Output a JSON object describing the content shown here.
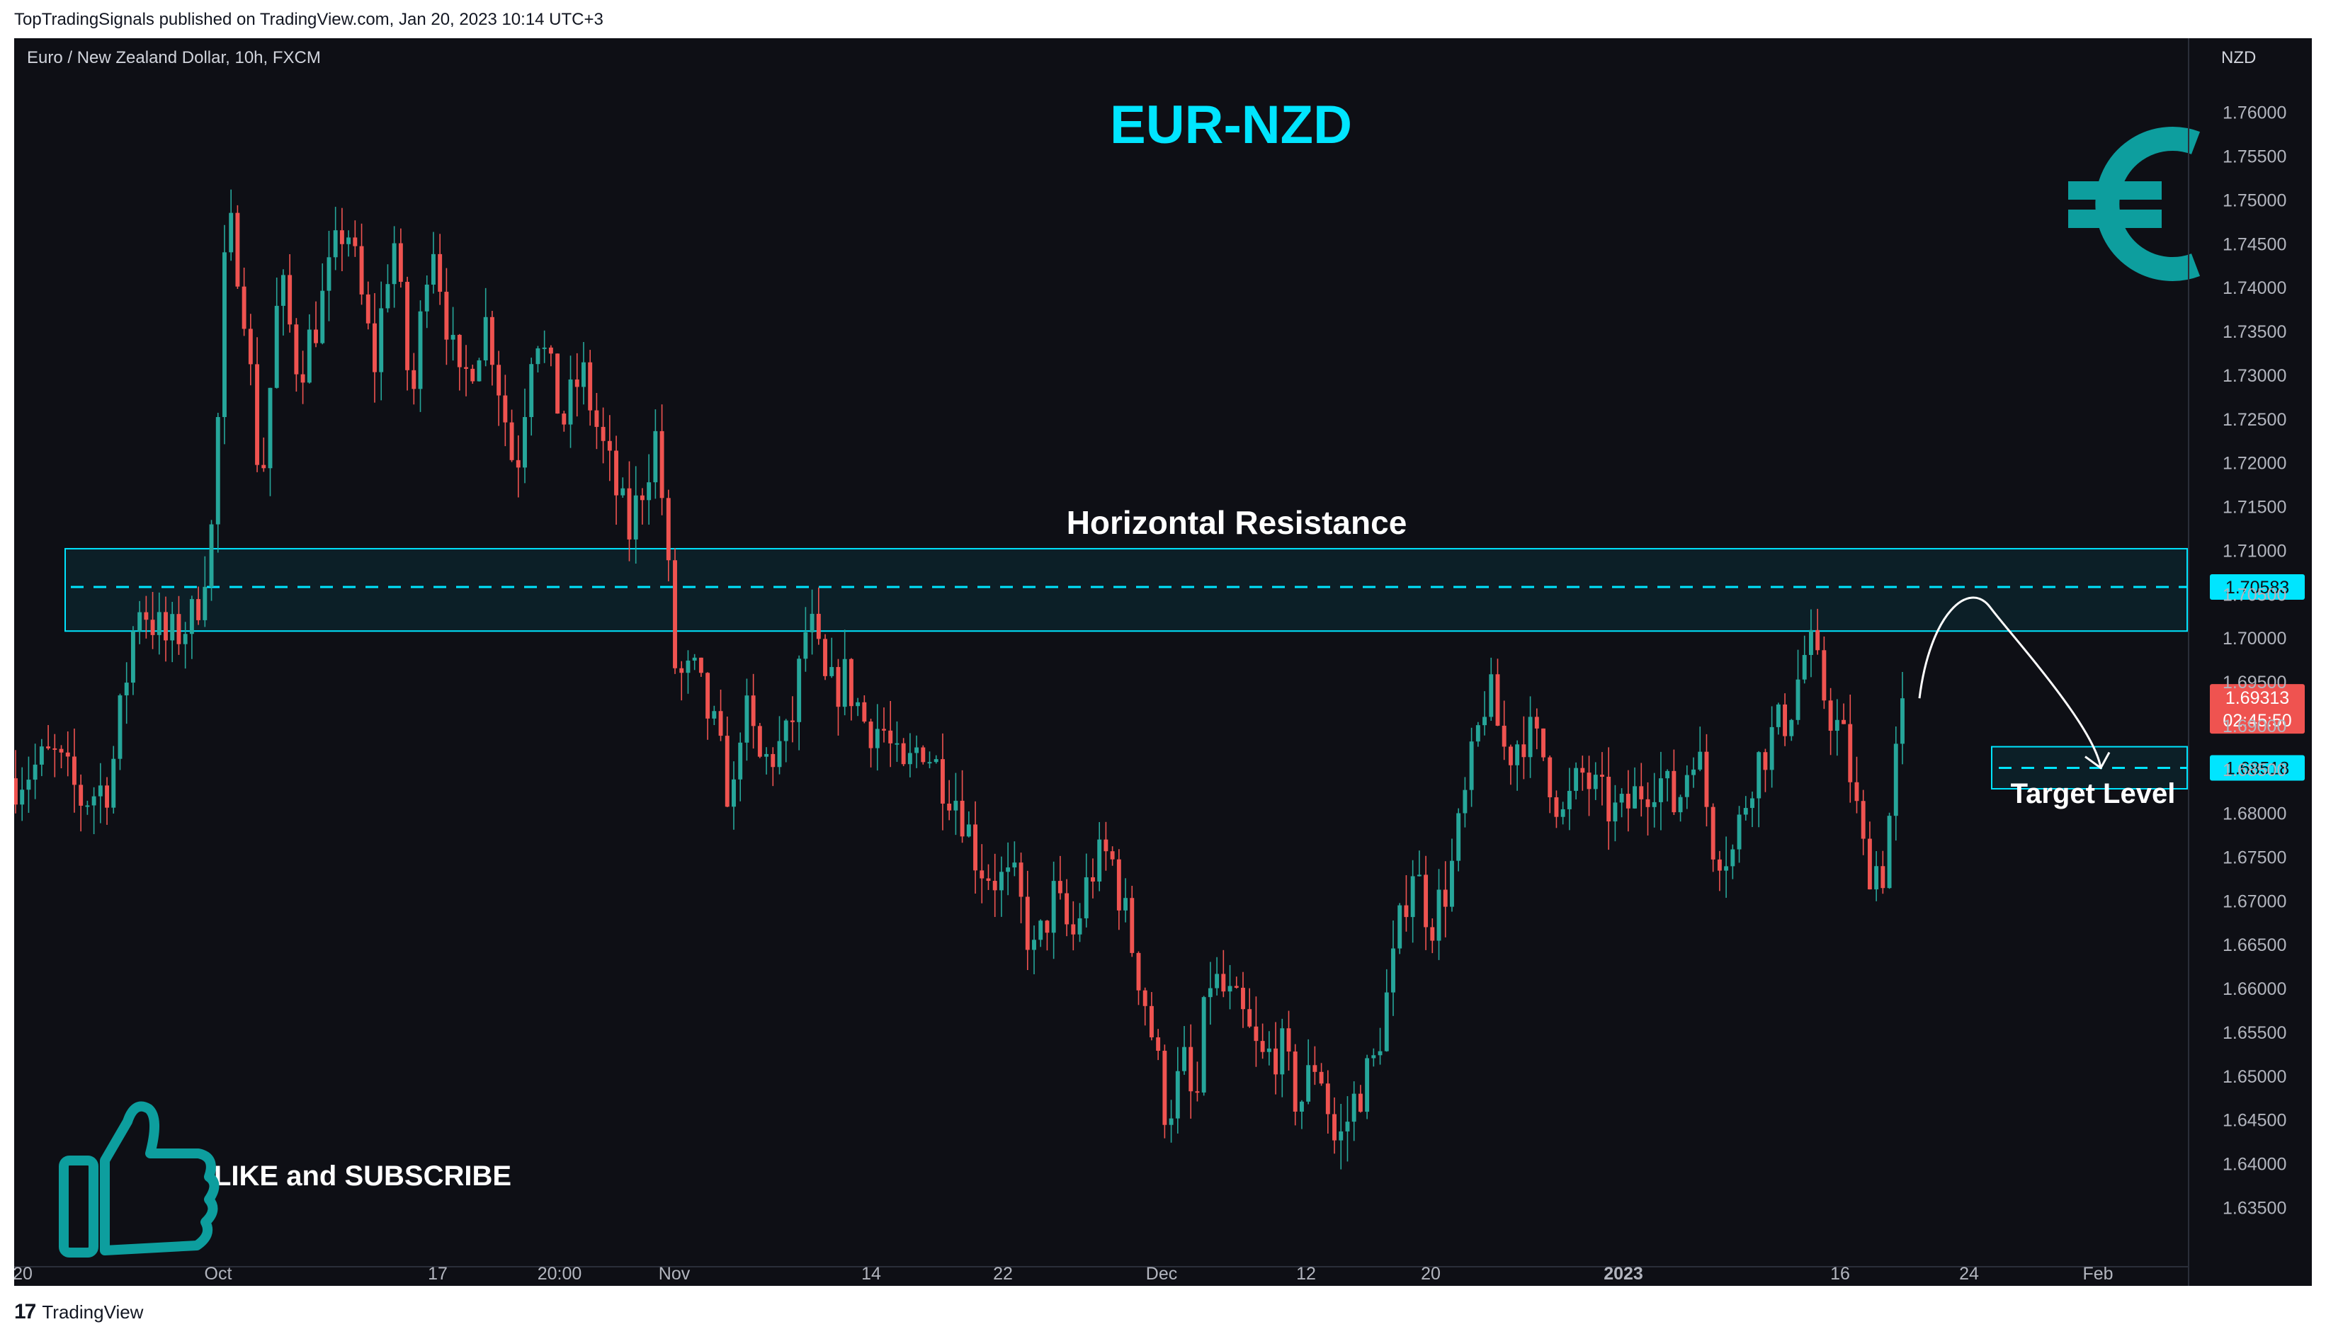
{
  "header": {
    "published": "TopTradingSignals published on TradingView.com, Jan 20, 2023 10:14 UTC+3"
  },
  "footer": {
    "brand": "TradingView",
    "logo": "tradingview-logo-icon"
  },
  "chart": {
    "symbol_line": "Euro / New Zealand Dollar, 10h, FXCM",
    "currency": "NZD",
    "title": "EUR-NZD",
    "resistance_label": "Horizontal Resistance",
    "target_label": "Target Level",
    "cta": "LIKE and SUBSCRIBE",
    "icons": [
      "euro-icon",
      "thumbs-up-icon"
    ],
    "colors": {
      "up": "#26a69a",
      "down": "#ef5350",
      "accent": "#00e5ff",
      "logo_teal": "#0d9e9e",
      "background": "#0e0f15"
    }
  },
  "chart_data": {
    "type": "candlestick",
    "y_axis": {
      "min": 1.6335,
      "max": 1.762,
      "ticks": [
        "1.76000",
        "1.75500",
        "1.75000",
        "1.74500",
        "1.74000",
        "1.73500",
        "1.73000",
        "1.72500",
        "1.72000",
        "1.71500",
        "1.71000",
        "1.70500",
        "1.70000",
        "1.69500",
        "1.69000",
        "1.68500",
        "1.68000",
        "1.67500",
        "1.67000",
        "1.66500",
        "1.66000",
        "1.65500",
        "1.65000",
        "1.64500",
        "1.64000",
        "1.63500"
      ]
    },
    "x_axis": {
      "labels": [
        "20",
        "Oct",
        "17",
        "20:00",
        "Nov",
        "14",
        "22",
        "Dec",
        "12",
        "20",
        "2023",
        "16",
        "24",
        "Feb"
      ]
    },
    "resistance_zone": {
      "high": 1.7102,
      "low": 1.7008,
      "level": 1.70583,
      "level_label": "1.70583"
    },
    "target": {
      "high": 1.6876,
      "low": 1.6828,
      "level": 1.68518,
      "level_label": "1.68518"
    },
    "last_price": {
      "value": 1.69313,
      "label": "1.69313",
      "countdown": "02:45:50"
    },
    "projection": [
      [
        1.69313,
        1.7035,
        1.68518
      ]
    ],
    "close_path": [
      [
        0,
        1.684
      ],
      [
        0.02,
        1.6865
      ],
      [
        0.035,
        1.6815
      ],
      [
        0.05,
        1.6835
      ],
      [
        0.065,
        1.7045
      ],
      [
        0.08,
        1.6995
      ],
      [
        0.095,
        1.7025
      ],
      [
        0.105,
        1.7135
      ],
      [
        0.112,
        1.748
      ],
      [
        0.12,
        1.741
      ],
      [
        0.13,
        1.7165
      ],
      [
        0.14,
        1.741
      ],
      [
        0.15,
        1.7305
      ],
      [
        0.16,
        1.7365
      ],
      [
        0.175,
        1.748
      ],
      [
        0.19,
        1.731
      ],
      [
        0.2,
        1.7465
      ],
      [
        0.21,
        1.726
      ],
      [
        0.22,
        1.7475
      ],
      [
        0.235,
        1.728
      ],
      [
        0.25,
        1.7365
      ],
      [
        0.265,
        1.7185
      ],
      [
        0.275,
        1.7365
      ],
      [
        0.29,
        1.7245
      ],
      [
        0.3,
        1.7305
      ],
      [
        0.31,
        1.7225
      ],
      [
        0.325,
        1.712
      ],
      [
        0.34,
        1.7235
      ],
      [
        0.35,
        1.6955
      ],
      [
        0.36,
        1.6955
      ],
      [
        0.37,
        1.6895
      ],
      [
        0.38,
        1.6805
      ],
      [
        0.385,
        1.6925
      ],
      [
        0.395,
        1.6855
      ],
      [
        0.41,
        1.6885
      ],
      [
        0.42,
        1.7025
      ],
      [
        0.43,
        1.6935
      ],
      [
        0.44,
        1.6955
      ],
      [
        0.45,
        1.6905
      ],
      [
        0.46,
        1.6895
      ],
      [
        0.47,
        1.6835
      ],
      [
        0.48,
        1.6885
      ],
      [
        0.49,
        1.6845
      ],
      [
        0.5,
        1.6815
      ],
      [
        0.51,
        1.6745
      ],
      [
        0.52,
        1.6725
      ],
      [
        0.53,
        1.6715
      ],
      [
        0.54,
        1.6635
      ],
      [
        0.55,
        1.6705
      ],
      [
        0.56,
        1.6655
      ],
      [
        0.57,
        1.6735
      ],
      [
        0.58,
        1.6755
      ],
      [
        0.59,
        1.6665
      ],
      [
        0.6,
        1.6575
      ],
      [
        0.61,
        1.6455
      ],
      [
        0.62,
        1.6515
      ],
      [
        0.625,
        1.6445
      ],
      [
        0.632,
        1.6615
      ],
      [
        0.64,
        1.6595
      ],
      [
        0.65,
        1.6565
      ],
      [
        0.66,
        1.6515
      ],
      [
        0.67,
        1.6535
      ],
      [
        0.68,
        1.6465
      ],
      [
        0.69,
        1.6525
      ],
      [
        0.7,
        1.6415
      ],
      [
        0.71,
        1.6475
      ],
      [
        0.72,
        1.6515
      ],
      [
        0.73,
        1.6625
      ],
      [
        0.74,
        1.6745
      ],
      [
        0.75,
        1.6675
      ],
      [
        0.76,
        1.6725
      ],
      [
        0.77,
        1.6835
      ],
      [
        0.78,
        1.6945
      ],
      [
        0.79,
        1.6865
      ],
      [
        0.8,
        1.6895
      ],
      [
        0.81,
        1.6865
      ],
      [
        0.82,
        1.6795
      ],
      [
        0.83,
        1.6845
      ],
      [
        0.84,
        1.6815
      ],
      [
        0.85,
        1.6795
      ],
      [
        0.86,
        1.6825
      ],
      [
        0.87,
        1.6845
      ],
      [
        0.88,
        1.6805
      ],
      [
        0.89,
        1.6885
      ],
      [
        0.9,
        1.6765
      ],
      [
        0.91,
        1.6755
      ],
      [
        0.92,
        1.6845
      ],
      [
        0.93,
        1.6885
      ],
      [
        0.94,
        1.6915
      ],
      [
        0.95,
        1.6995
      ],
      [
        0.96,
        1.6925
      ],
      [
        0.97,
        1.6875
      ],
      [
        0.98,
        1.6745
      ],
      [
        0.99,
        1.6735
      ],
      [
        1,
        1.6931
      ]
    ]
  }
}
